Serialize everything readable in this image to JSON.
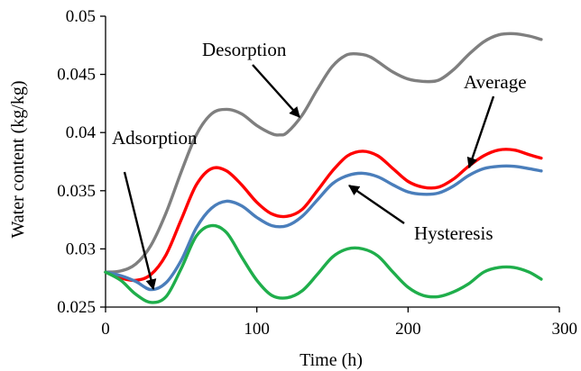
{
  "chart_data": {
    "type": "line",
    "xlabel": "Time (h)",
    "ylabel": "Water content (kg/kg)",
    "xlim": [
      0,
      300
    ],
    "ylim": [
      0.025,
      0.05
    ],
    "x_ticks": [
      "0",
      "100",
      "200",
      "300"
    ],
    "y_ticks": [
      "0.025",
      "0.03",
      "0.035",
      "0.04",
      "0.045",
      "0.05"
    ],
    "grid": false,
    "series": [
      {
        "name": "Desorption",
        "color": "#7f7f7f",
        "x": [
          0,
          10,
          20,
          30,
          40,
          50,
          60,
          70,
          80,
          90,
          100,
          110,
          115,
          120,
          130,
          140,
          150,
          160,
          170,
          175,
          180,
          190,
          200,
          210,
          220,
          230,
          240,
          250,
          260,
          270,
          280,
          288
        ],
        "y": [
          0.028,
          0.0281,
          0.0287,
          0.0303,
          0.0331,
          0.0366,
          0.0398,
          0.0416,
          0.042,
          0.0416,
          0.0406,
          0.0399,
          0.0398,
          0.04,
          0.0415,
          0.0437,
          0.0457,
          0.0467,
          0.0467,
          0.0465,
          0.0461,
          0.0452,
          0.0446,
          0.0444,
          0.0445,
          0.0454,
          0.0467,
          0.0478,
          0.0484,
          0.0485,
          0.0483,
          0.048
        ]
      },
      {
        "name": "Average",
        "color": "#ff0000",
        "x": [
          0,
          10,
          20,
          30,
          40,
          50,
          60,
          70,
          80,
          90,
          100,
          110,
          120,
          130,
          140,
          150,
          160,
          170,
          180,
          190,
          200,
          210,
          220,
          230,
          240,
          250,
          260,
          270,
          280,
          288
        ],
        "y": [
          0.028,
          0.0275,
          0.0273,
          0.0278,
          0.0295,
          0.0325,
          0.0355,
          0.0369,
          0.0367,
          0.0355,
          0.034,
          0.033,
          0.0328,
          0.0334,
          0.035,
          0.0367,
          0.038,
          0.0384,
          0.038,
          0.0369,
          0.0358,
          0.0353,
          0.0353,
          0.036,
          0.0371,
          0.038,
          0.0385,
          0.0385,
          0.0381,
          0.0378
        ]
      },
      {
        "name": "Hysteresis",
        "color": "#4a7ebb",
        "x": [
          0,
          10,
          20,
          30,
          40,
          50,
          60,
          70,
          80,
          90,
          100,
          110,
          120,
          130,
          140,
          150,
          160,
          170,
          180,
          190,
          200,
          210,
          220,
          230,
          240,
          250,
          260,
          270,
          280,
          288
        ],
        "y": [
          0.028,
          0.0277,
          0.0272,
          0.0265,
          0.0271,
          0.029,
          0.0318,
          0.0335,
          0.0341,
          0.0337,
          0.0327,
          0.032,
          0.032,
          0.0328,
          0.0342,
          0.0356,
          0.0363,
          0.0365,
          0.0362,
          0.0355,
          0.0349,
          0.0347,
          0.0348,
          0.0354,
          0.0363,
          0.0369,
          0.0371,
          0.0371,
          0.0369,
          0.0367
        ]
      },
      {
        "name": "Adsorption",
        "color": "#1fae4b",
        "x": [
          0,
          10,
          20,
          30,
          40,
          50,
          60,
          70,
          80,
          90,
          100,
          110,
          120,
          130,
          140,
          150,
          160,
          170,
          180,
          190,
          200,
          210,
          220,
          230,
          240,
          250,
          260,
          270,
          280,
          288
        ],
        "y": [
          0.028,
          0.0273,
          0.0261,
          0.0254,
          0.0259,
          0.0283,
          0.0311,
          0.032,
          0.0314,
          0.0293,
          0.0273,
          0.026,
          0.0258,
          0.0264,
          0.0278,
          0.0293,
          0.03,
          0.03,
          0.0294,
          0.028,
          0.0267,
          0.026,
          0.0259,
          0.0263,
          0.027,
          0.028,
          0.0284,
          0.0284,
          0.028,
          0.0274
        ]
      }
    ],
    "annotations": [
      {
        "text": "Desorption",
        "series": "Desorption",
        "arrow_to": [
          125,
          0.0401
        ]
      },
      {
        "text": "Average",
        "series": "Average",
        "arrow_to": [
          235,
          0.0358
        ]
      },
      {
        "text": "Adsorption",
        "series": "Adsorption",
        "arrow_to": [
          32,
          0.0256
        ]
      },
      {
        "text": "Hysteresis",
        "series": "Hysteresis",
        "arrow_to": [
          160,
          0.0357
        ]
      }
    ]
  }
}
